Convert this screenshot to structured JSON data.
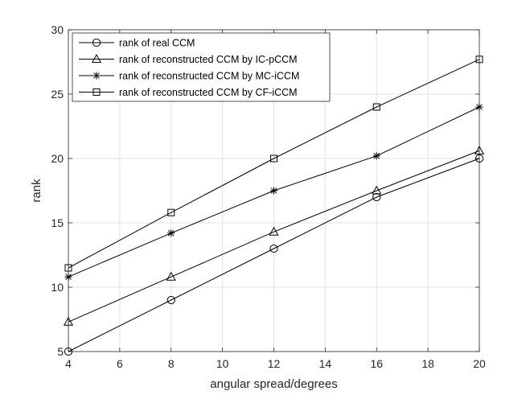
{
  "chart_data": {
    "type": "line",
    "title": "",
    "xlabel": "angular spread/degrees",
    "ylabel": "rank",
    "x": [
      4,
      8,
      12,
      16,
      20
    ],
    "xlim": [
      4,
      20
    ],
    "ylim": [
      5,
      30
    ],
    "xticks": [
      4,
      6,
      8,
      10,
      12,
      14,
      16,
      18,
      20
    ],
    "yticks": [
      5,
      10,
      15,
      20,
      25,
      30
    ],
    "grid": true,
    "legend_position": "top-left",
    "series": [
      {
        "name": "rank of real CCM",
        "marker": "circle",
        "color": "#000000",
        "values": [
          5,
          9,
          13,
          17,
          20
        ]
      },
      {
        "name": "rank of reconstructed CCM by IC-pCCM",
        "marker": "triangle",
        "color": "#000000",
        "values": [
          7.3,
          10.8,
          14.3,
          17.5,
          20.6
        ]
      },
      {
        "name": "rank of reconstructed CCM by MC-iCCM",
        "marker": "star",
        "color": "#000000",
        "values": [
          10.8,
          14.2,
          17.5,
          20.2,
          24
        ]
      },
      {
        "name": "rank of reconstructed CCM by CF-iCCM",
        "marker": "square",
        "color": "#000000",
        "values": [
          11.5,
          15.8,
          20,
          24,
          27.7
        ]
      }
    ]
  }
}
